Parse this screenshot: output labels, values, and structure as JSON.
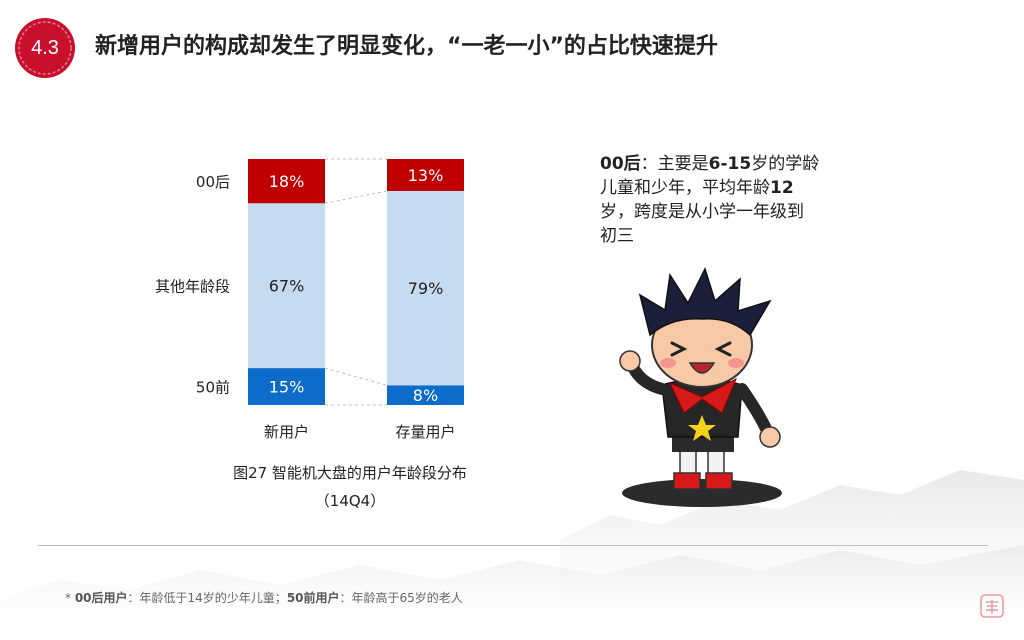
{
  "header": {
    "badge": "4.3",
    "title": "新增用户的构成却发生了明显变化，“一老一小”的占比快速提升"
  },
  "chart_data": {
    "type": "bar",
    "stacked": true,
    "percent": true,
    "categories": [
      "新用户",
      "存量用户"
    ],
    "series": [
      {
        "name": "50前",
        "values": [
          15,
          8
        ],
        "color": "#0d6bc9",
        "labels": [
          "15%",
          "8%"
        ]
      },
      {
        "name": "其他年龄段",
        "values": [
          67,
          79
        ],
        "color": "#c6daf0",
        "labels": [
          "67%",
          "79%"
        ]
      },
      {
        "name": "00后",
        "values": [
          18,
          13
        ],
        "color": "#c00000",
        "labels": [
          "18%",
          "13%"
        ]
      }
    ],
    "title": "图27 智能机大盘的用户年龄段分布",
    "subtitle": "（14Q4）"
  },
  "note": {
    "part1": "00后",
    "part2": "：主要是",
    "part3": "6-15",
    "part4": "岁的学龄儿童和少年，平均年龄",
    "part5": "12",
    "part6": "岁，跨度是从小学一年级到初三"
  },
  "footnote": {
    "lead": "* ",
    "term1": "00后用户",
    "def1": "：年龄低于14岁的少年儿童；",
    "term2": "50前用户",
    "def2": "：年龄高于65岁的老人"
  },
  "colors": {
    "accent": "#c00000",
    "badge": "#c8102e"
  },
  "icons": {
    "badge": "red-seal-circle",
    "illustration": "cartoon-boy-with-red-scarf",
    "corner": "red-seal-stamp"
  }
}
